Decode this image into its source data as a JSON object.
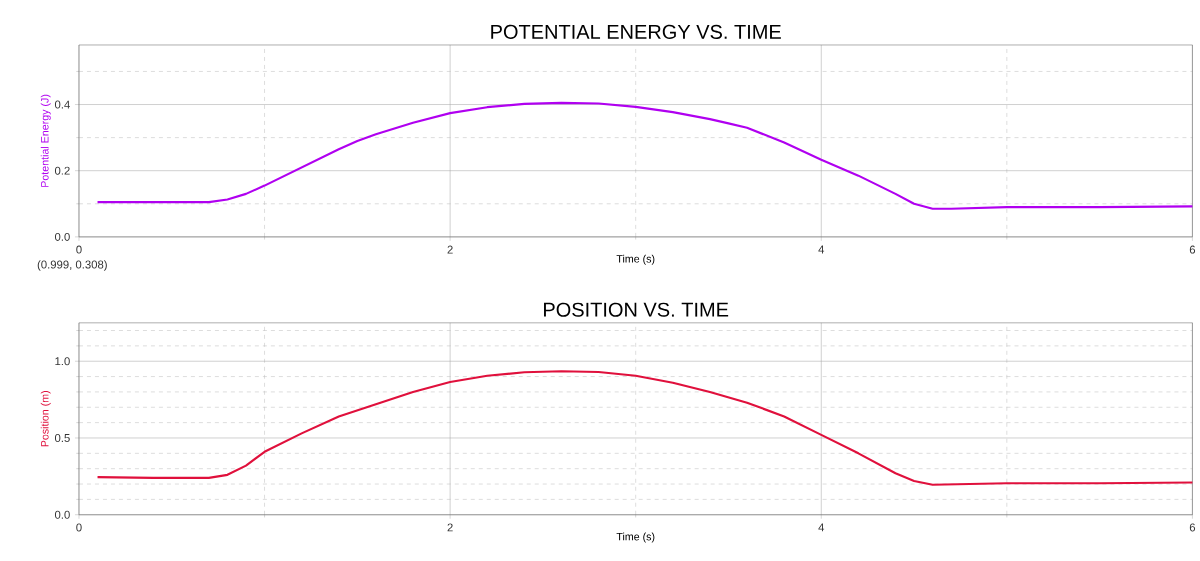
{
  "chart_data": [
    {
      "type": "line",
      "title": "POTENTIAL ENERGY VS. TIME",
      "xlabel": "Time (s)",
      "ylabel": "Potential Energy (J)",
      "annotations": [
        "(0.999, 0.308)"
      ],
      "grid": true,
      "xlim": [
        0,
        6
      ],
      "ylim": [
        0,
        0.58
      ],
      "xticks": [
        0,
        {
          "value": 1,
          "label": null
        },
        2,
        {
          "value": 3,
          "label": null
        },
        4,
        {
          "value": 5,
          "label": null
        },
        6
      ],
      "yticks": [
        {
          "value": 0,
          "label": "0.0"
        },
        {
          "value": 0.1,
          "label": null
        },
        0.2,
        {
          "value": 0.3,
          "label": null
        },
        0.4,
        {
          "value": 0.5,
          "label": null
        }
      ],
      "series": [
        {
          "color": "#b000f0",
          "x": [
            0.1,
            0.4,
            0.7,
            0.8,
            0.9,
            1.0,
            1.2,
            1.4,
            1.5,
            1.6,
            1.8,
            2.0,
            2.2,
            2.4,
            2.6,
            2.8,
            3.0,
            3.2,
            3.4,
            3.5,
            3.6,
            3.8,
            4.0,
            4.2,
            4.4,
            4.5,
            4.6,
            4.7,
            5.0,
            5.5,
            6.0
          ],
          "values": [
            0.105,
            0.105,
            0.105,
            0.113,
            0.13,
            0.155,
            0.21,
            0.265,
            0.29,
            0.31,
            0.345,
            0.374,
            0.392,
            0.402,
            0.405,
            0.403,
            0.393,
            0.377,
            0.356,
            0.343,
            0.33,
            0.285,
            0.233,
            0.185,
            0.13,
            0.1,
            0.085,
            0.085,
            0.09,
            0.09,
            0.092
          ]
        }
      ]
    },
    {
      "type": "line",
      "title": "POSITION VS. TIME",
      "xlabel": "Time (s)",
      "ylabel": "Position (m)",
      "grid": true,
      "xlim": [
        0,
        6
      ],
      "ylim": [
        0,
        1.25
      ],
      "xticks": [
        0,
        {
          "value": 1,
          "label": null
        },
        2,
        {
          "value": 3,
          "label": null
        },
        4,
        {
          "value": 5,
          "label": null
        },
        6
      ],
      "yticks": [
        {
          "value": 0,
          "label": "0.0"
        },
        {
          "value": 0.1,
          "label": null
        },
        {
          "value": 0.2,
          "label": null
        },
        {
          "value": 0.3,
          "label": null
        },
        {
          "value": 0.4,
          "label": null
        },
        0.5,
        {
          "value": 0.6,
          "label": null
        },
        {
          "value": 0.7,
          "label": null
        },
        {
          "value": 0.8,
          "label": null
        },
        {
          "value": 0.9,
          "label": null
        },
        {
          "value": 1.0,
          "label": "1.0"
        },
        {
          "value": 1.1,
          "label": null
        },
        {
          "value": 1.2,
          "label": null
        }
      ],
      "series": [
        {
          "color": "#e0103c",
          "x": [
            0.1,
            0.4,
            0.7,
            0.8,
            0.9,
            1.0,
            1.2,
            1.4,
            1.6,
            1.8,
            2.0,
            2.2,
            2.4,
            2.6,
            2.8,
            3.0,
            3.2,
            3.4,
            3.6,
            3.8,
            4.0,
            4.2,
            4.4,
            4.5,
            4.6,
            4.8,
            5.0,
            5.5,
            6.0
          ],
          "values": [
            0.245,
            0.24,
            0.24,
            0.26,
            0.32,
            0.41,
            0.53,
            0.64,
            0.72,
            0.8,
            0.865,
            0.905,
            0.928,
            0.935,
            0.93,
            0.905,
            0.86,
            0.8,
            0.73,
            0.64,
            0.52,
            0.4,
            0.27,
            0.22,
            0.195,
            0.2,
            0.205,
            0.205,
            0.21
          ]
        }
      ]
    }
  ]
}
